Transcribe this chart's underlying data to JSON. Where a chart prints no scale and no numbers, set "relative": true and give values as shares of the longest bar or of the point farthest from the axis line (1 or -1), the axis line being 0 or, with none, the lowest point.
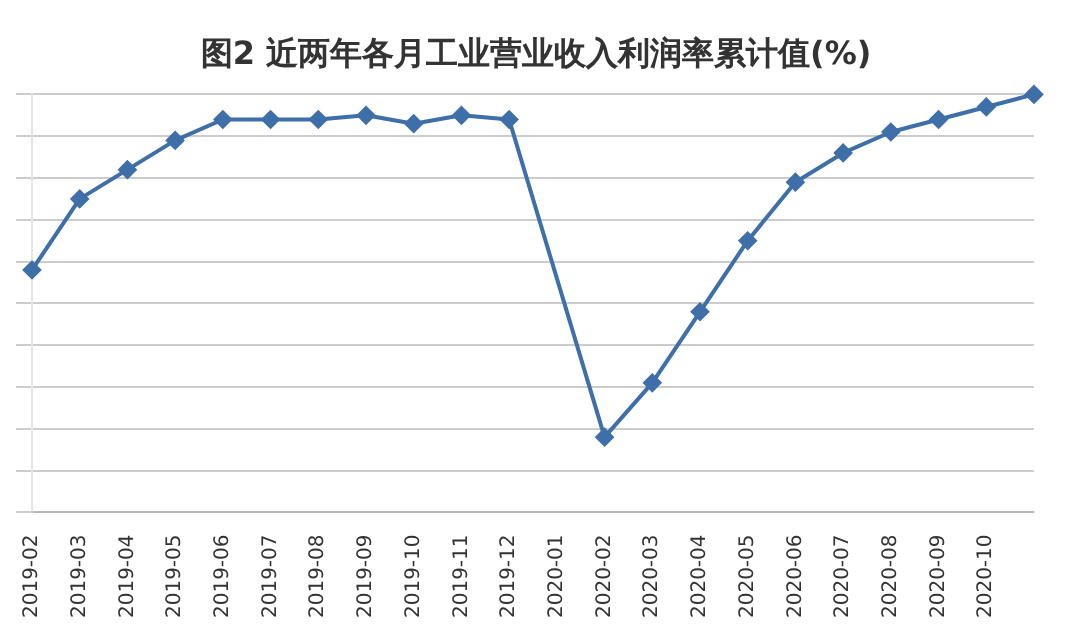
{
  "chart_data": {
    "type": "line",
    "title": "图2 近两年各月工业营业收入利润率累计值(%)",
    "relative": true,
    "categories": [
      "2019-02",
      "2019-03",
      "2019-04",
      "2019-05",
      "2019-06",
      "2019-07",
      "2019-08",
      "2019-09",
      "2019-10",
      "2019-11",
      "2019-12",
      "2020-01",
      "2020-02",
      "2020-03",
      "2020-04",
      "2020-05",
      "2020-06",
      "2020-07",
      "2020-08",
      "2020-09",
      "2020-10",
      null
    ],
    "series": [
      {
        "color": "#3e6fa8",
        "values": [
          0.58,
          0.75,
          0.82,
          0.89,
          0.94,
          0.94,
          0.94,
          0.95,
          0.93,
          0.95,
          0.94,
          null,
          0.18,
          0.31,
          0.48,
          0.65,
          0.79,
          0.86,
          0.91,
          0.94,
          0.97,
          1
        ]
      }
    ],
    "grid": "y",
    "legend": false,
    "marker": "diamond",
    "line_style": "solid"
  }
}
